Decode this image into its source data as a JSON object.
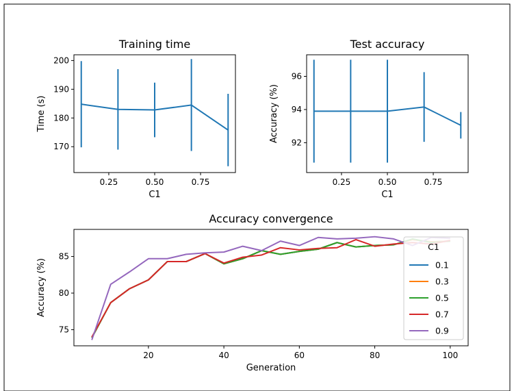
{
  "chart_data": [
    {
      "type": "line",
      "error_bars": true,
      "title": "Training time",
      "xlabel": "C1",
      "ylabel": "Time (s)",
      "xlim": [
        0.06,
        0.94
      ],
      "ylim": [
        161,
        202
      ],
      "xticks": [
        "0.25",
        "0.50",
        "0.75"
      ],
      "yticks": [
        "170",
        "180",
        "190",
        "200"
      ],
      "color": "#1f77b4",
      "x": [
        0.1,
        0.3,
        0.5,
        0.7,
        0.9
      ],
      "y": [
        184.8,
        183.0,
        182.8,
        184.5,
        175.8
      ],
      "yerr": [
        15.0,
        14.0,
        9.5,
        16.0,
        12.6
      ]
    },
    {
      "type": "line",
      "error_bars": true,
      "title": "Test accuracy",
      "xlabel": "C1",
      "ylabel": "Accuracy (%)",
      "xlim": [
        0.06,
        0.94
      ],
      "ylim": [
        90.2,
        97.3
      ],
      "xticks": [
        "0.25",
        "0.50",
        "0.75"
      ],
      "yticks": [
        "92",
        "94",
        "96"
      ],
      "color": "#1f77b4",
      "x": [
        0.1,
        0.3,
        0.5,
        0.7,
        0.9
      ],
      "y": [
        93.9,
        93.9,
        93.9,
        94.15,
        93.05
      ],
      "yerr": [
        3.1,
        3.1,
        3.1,
        2.1,
        0.8
      ]
    },
    {
      "type": "line",
      "title": "Accuracy convergence",
      "xlabel": "Generation",
      "ylabel": "Accuracy (%)",
      "xlim": [
        0.25,
        104.75
      ],
      "ylim": [
        72.8,
        88.7
      ],
      "xticks": [
        "20",
        "40",
        "60",
        "80",
        "100"
      ],
      "yticks": [
        "75",
        "80",
        "85"
      ],
      "x": [
        5,
        10,
        15,
        20,
        25,
        30,
        35,
        40,
        45,
        50,
        55,
        60,
        65,
        70,
        75,
        80,
        85,
        90,
        95,
        100
      ],
      "legend": {
        "title": "C1",
        "position": "right"
      },
      "series": [
        {
          "name": "0.1",
          "color": "#1f77b4",
          "values": [
            73.9,
            78.7,
            80.6,
            81.8,
            84.3,
            84.3,
            85.4,
            84.0,
            84.7,
            85.8,
            85.3,
            85.7,
            86.0,
            86.9,
            86.3,
            86.5,
            86.6,
            87.3,
            87.0,
            87.1
          ]
        },
        {
          "name": "0.3",
          "color": "#ff7f0e",
          "values": [
            73.9,
            78.7,
            80.6,
            81.8,
            84.3,
            84.3,
            85.4,
            84.0,
            84.7,
            85.8,
            85.3,
            85.7,
            86.0,
            86.9,
            86.3,
            86.5,
            86.6,
            87.3,
            87.0,
            87.1
          ]
        },
        {
          "name": "0.5",
          "color": "#2ca02c",
          "values": [
            73.9,
            78.7,
            80.6,
            81.8,
            84.3,
            84.3,
            85.4,
            84.0,
            84.7,
            85.8,
            85.3,
            85.7,
            86.0,
            86.9,
            86.3,
            86.5,
            86.6,
            87.4,
            86.9,
            87.1
          ]
        },
        {
          "name": "0.7",
          "color": "#d62728",
          "values": [
            74.0,
            78.7,
            80.6,
            81.8,
            84.3,
            84.3,
            85.4,
            84.1,
            84.9,
            85.2,
            86.2,
            85.9,
            86.1,
            86.2,
            87.3,
            86.4,
            86.7,
            86.9,
            86.7,
            87.2
          ]
        },
        {
          "name": "0.9",
          "color": "#9467bd",
          "values": [
            73.6,
            81.2,
            82.9,
            84.7,
            84.7,
            85.3,
            85.5,
            85.6,
            86.4,
            85.8,
            87.1,
            86.5,
            87.6,
            87.4,
            87.5,
            87.7,
            87.4,
            86.5,
            87.6,
            87.5
          ]
        }
      ]
    }
  ]
}
